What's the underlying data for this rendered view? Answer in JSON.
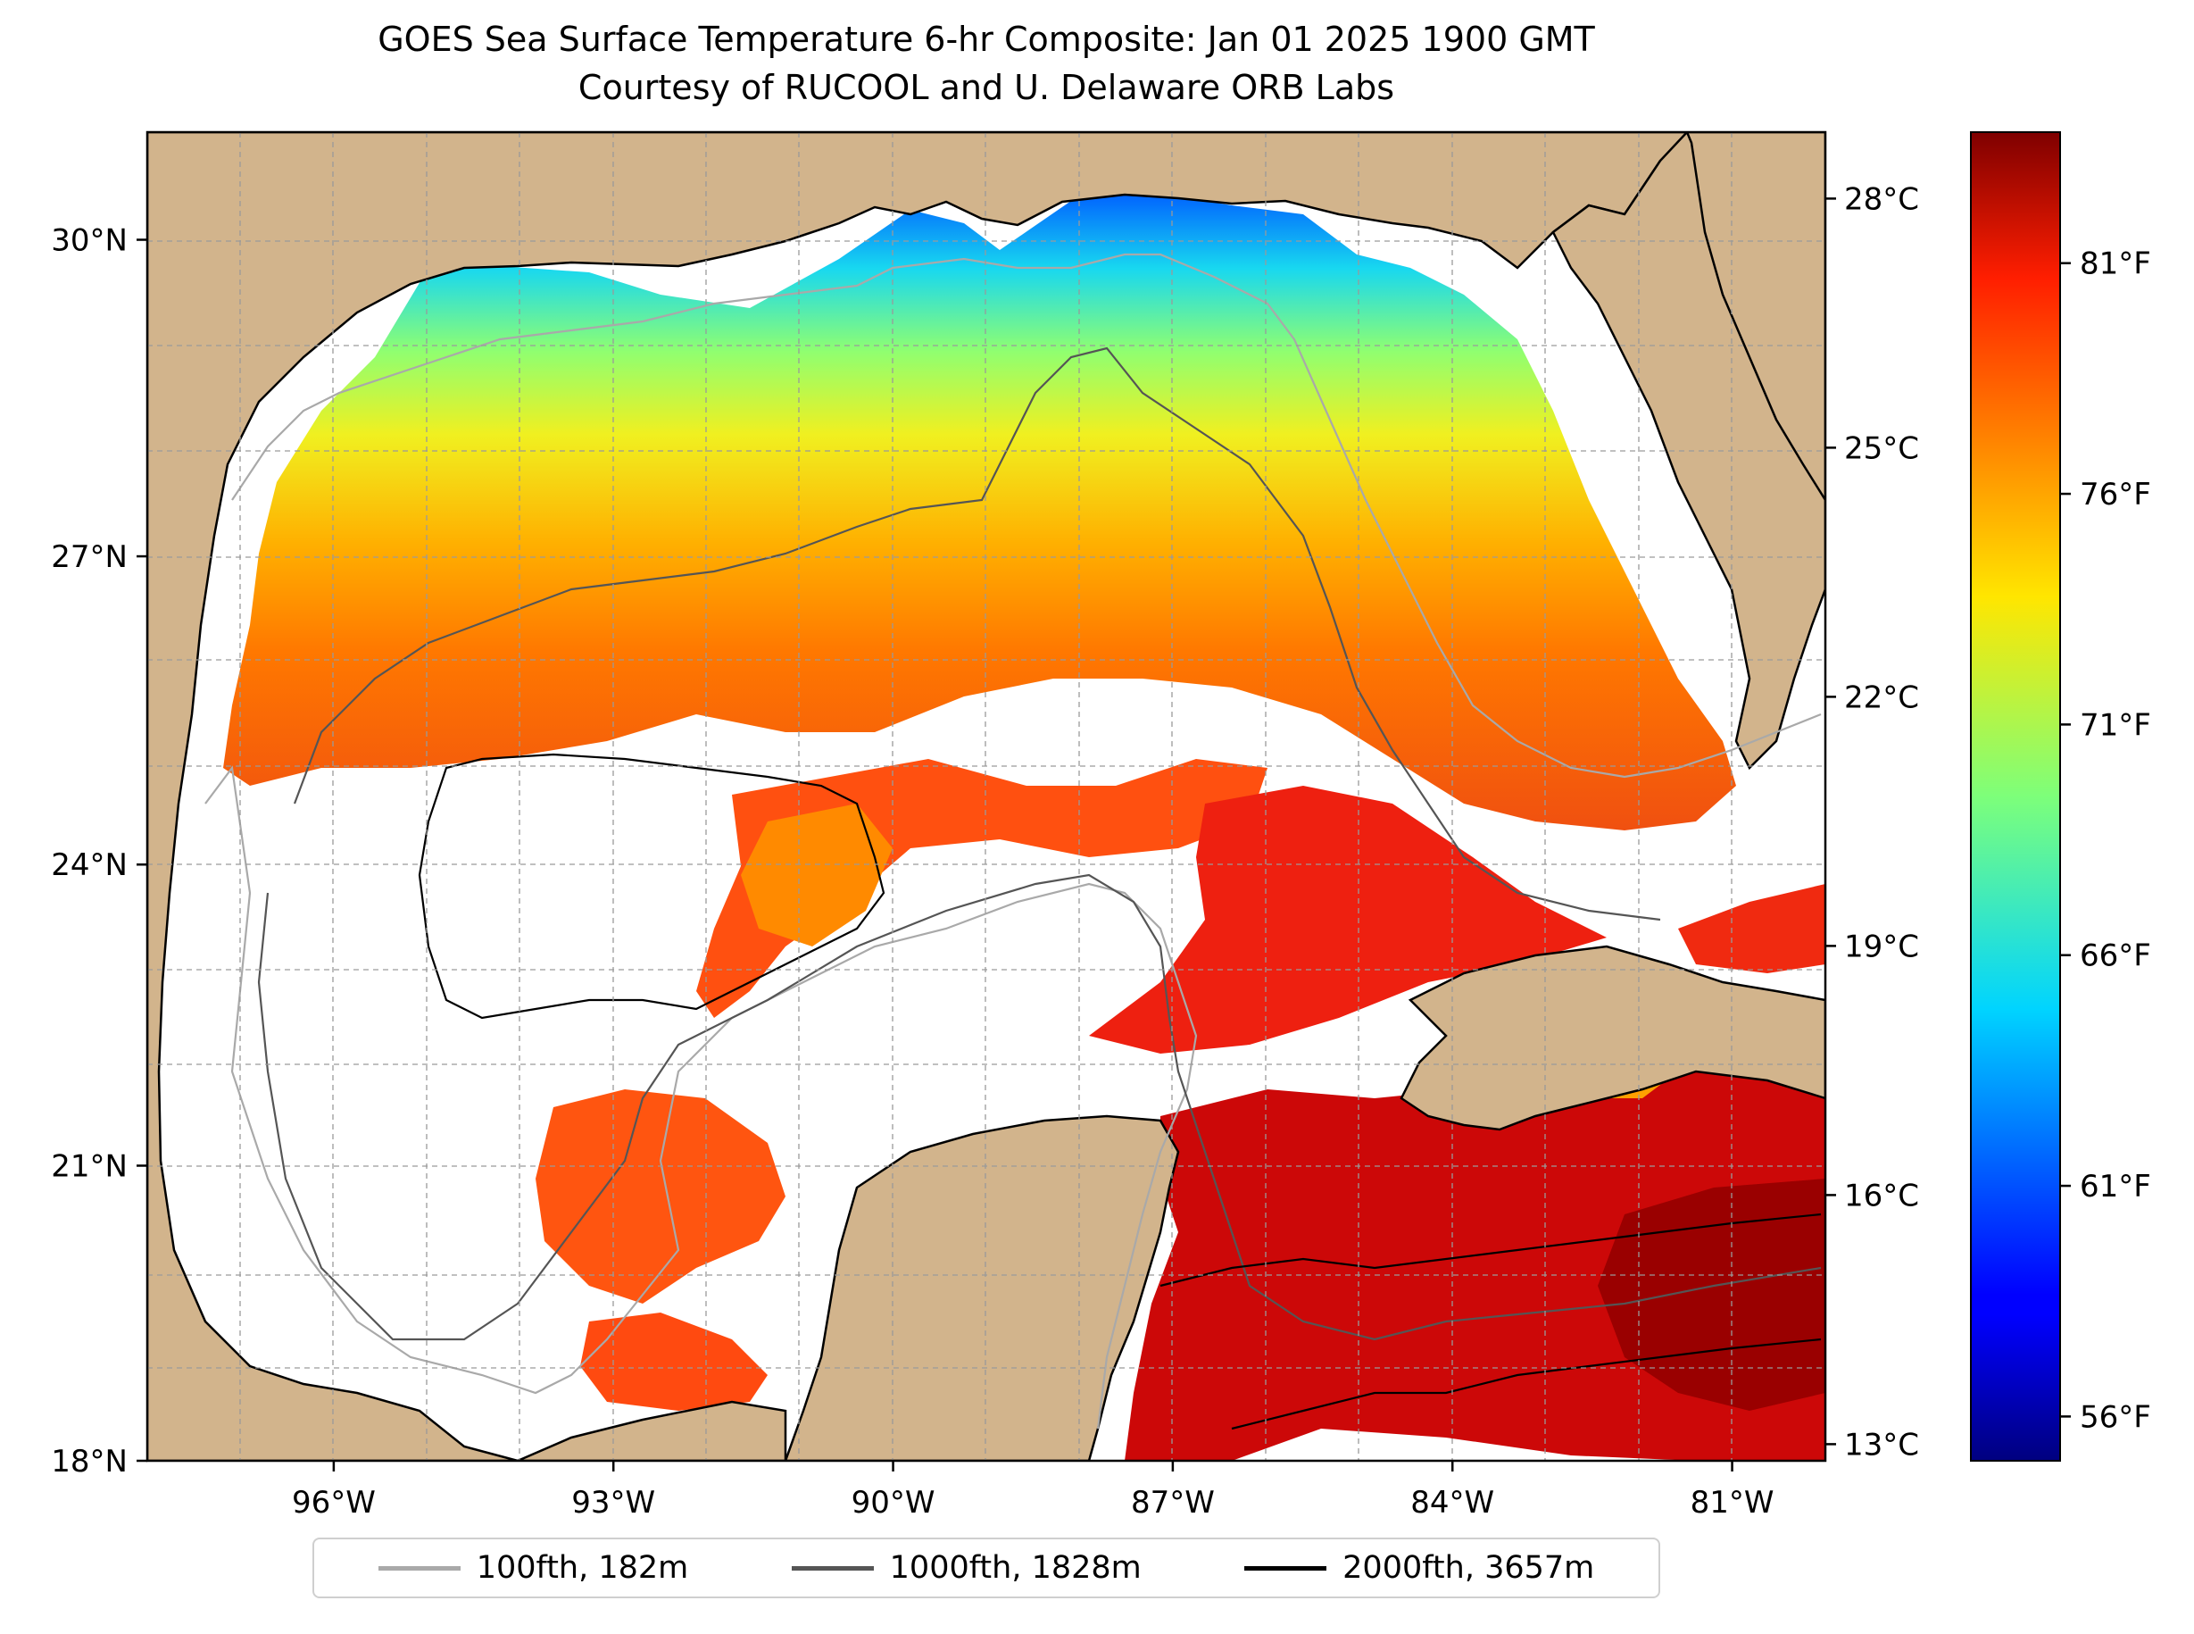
{
  "title": {
    "line1": "GOES Sea Surface Temperature 6-hr Composite: Jan 01 2025 1900 GMT",
    "line2": "Courtesy of RUCOOL and U. Delaware ORB Labs"
  },
  "map": {
    "region": "Gulf of Mexico",
    "lon_range": [
      -98,
      -80
    ],
    "lat_range": [
      18,
      31
    ],
    "lon_ticks": [
      {
        "value": -96,
        "label": "96°W"
      },
      {
        "value": -93,
        "label": "93°W"
      },
      {
        "value": -90,
        "label": "90°W"
      },
      {
        "value": -87,
        "label": "87°W"
      },
      {
        "value": -84,
        "label": "84°W"
      },
      {
        "value": -81,
        "label": "81°W"
      }
    ],
    "lat_ticks": [
      {
        "value": 18,
        "label": "18°N"
      },
      {
        "value": 21,
        "label": "21°N"
      },
      {
        "value": 24,
        "label": "24°N"
      },
      {
        "value": 27,
        "label": "27°N"
      },
      {
        "value": 30,
        "label": "30°N"
      }
    ],
    "land_color": "#d2b48c",
    "no_data_color": "#ffffff",
    "gridlines": "dashed"
  },
  "colorbar": {
    "colormap": "jet",
    "celsius_range": [
      12.8,
      28.8
    ],
    "celsius_ticks": [
      {
        "value": 13,
        "label": "13°C"
      },
      {
        "value": 16,
        "label": "16°C"
      },
      {
        "value": 19,
        "label": "19°C"
      },
      {
        "value": 22,
        "label": "22°C"
      },
      {
        "value": 25,
        "label": "25°C"
      },
      {
        "value": 28,
        "label": "28°C"
      }
    ],
    "fahrenheit_ticks": [
      {
        "value": 56,
        "label": "56°F"
      },
      {
        "value": 61,
        "label": "61°F"
      },
      {
        "value": 66,
        "label": "66°F"
      },
      {
        "value": 71,
        "label": "71°F"
      },
      {
        "value": 76,
        "label": "76°F"
      },
      {
        "value": 81,
        "label": "81°F"
      }
    ]
  },
  "legend": [
    {
      "label": "100fth, 182m",
      "color": "#a9a9a9"
    },
    {
      "label": "1000fth, 1828m",
      "color": "#555555"
    },
    {
      "label": "2000fth, 3657m",
      "color": "#000000"
    }
  ]
}
